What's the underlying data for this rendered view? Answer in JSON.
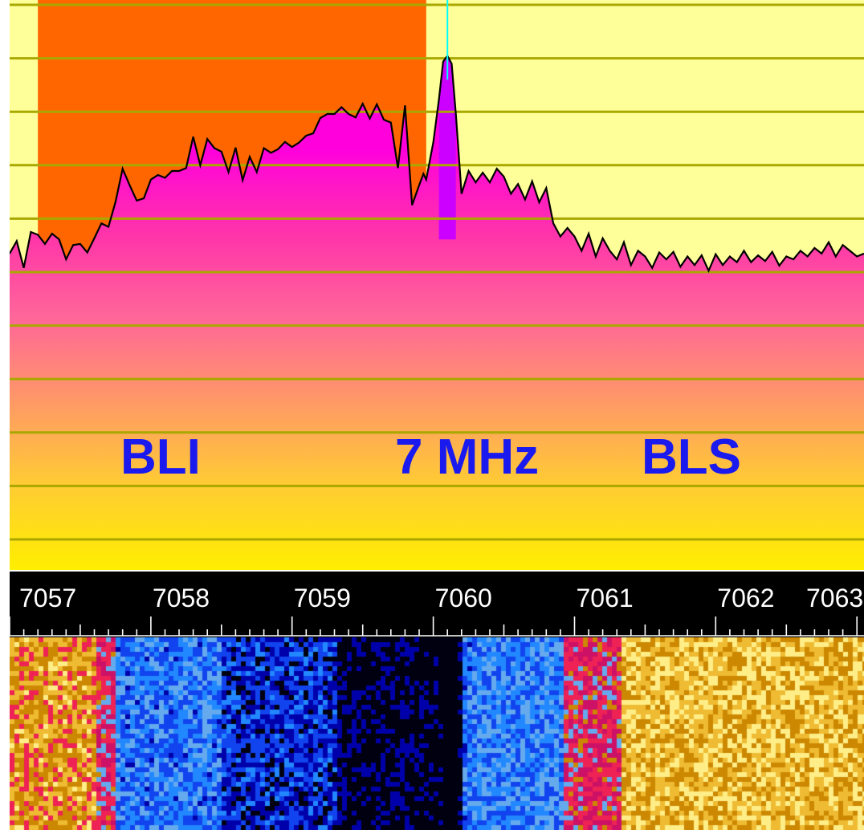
{
  "spectrum": {
    "band_labels": {
      "lower_edge": "BLI",
      "center": "7 MHz",
      "upper_edge": "BLS"
    },
    "passband": {
      "start_khz": 7057.2,
      "end_khz": 7059.95
    },
    "tuned_frequency_khz": 7060.1,
    "trace_points": [
      [
        7057.0,
        0.445
      ],
      [
        7057.05,
        0.423
      ],
      [
        7057.1,
        0.47
      ],
      [
        7057.15,
        0.407
      ],
      [
        7057.2,
        0.412
      ],
      [
        7057.25,
        0.428
      ],
      [
        7057.3,
        0.41
      ],
      [
        7057.35,
        0.42
      ],
      [
        7057.4,
        0.455
      ],
      [
        7057.45,
        0.43
      ],
      [
        7057.5,
        0.428
      ],
      [
        7057.55,
        0.443
      ],
      [
        7057.6,
        0.418
      ],
      [
        7057.65,
        0.392
      ],
      [
        7057.7,
        0.398
      ],
      [
        7057.75,
        0.354
      ],
      [
        7057.8,
        0.296
      ],
      [
        7057.85,
        0.325
      ],
      [
        7057.9,
        0.352
      ],
      [
        7057.95,
        0.348
      ],
      [
        7058.0,
        0.315
      ],
      [
        7058.05,
        0.307
      ],
      [
        7058.1,
        0.312
      ],
      [
        7058.15,
        0.3
      ],
      [
        7058.2,
        0.3
      ],
      [
        7058.25,
        0.295
      ],
      [
        7058.3,
        0.24
      ],
      [
        7058.35,
        0.29
      ],
      [
        7058.4,
        0.244
      ],
      [
        7058.45,
        0.26
      ],
      [
        7058.5,
        0.266
      ],
      [
        7058.55,
        0.302
      ],
      [
        7058.6,
        0.259
      ],
      [
        7058.65,
        0.316
      ],
      [
        7058.7,
        0.275
      ],
      [
        7058.75,
        0.302
      ],
      [
        7058.8,
        0.26
      ],
      [
        7058.85,
        0.268
      ],
      [
        7058.9,
        0.262
      ],
      [
        7058.95,
        0.249
      ],
      [
        7059.0,
        0.258
      ],
      [
        7059.05,
        0.25
      ],
      [
        7059.1,
        0.238
      ],
      [
        7059.15,
        0.234
      ],
      [
        7059.2,
        0.207
      ],
      [
        7059.25,
        0.2
      ],
      [
        7059.3,
        0.2
      ],
      [
        7059.35,
        0.188
      ],
      [
        7059.4,
        0.2
      ],
      [
        7059.45,
        0.206
      ],
      [
        7059.5,
        0.182
      ],
      [
        7059.55,
        0.208
      ],
      [
        7059.6,
        0.183
      ],
      [
        7059.65,
        0.21
      ],
      [
        7059.7,
        0.215
      ],
      [
        7059.75,
        0.295
      ],
      [
        7059.8,
        0.185
      ],
      [
        7059.85,
        0.36
      ],
      [
        7059.9,
        0.325
      ],
      [
        7059.93,
        0.305
      ],
      [
        7059.95,
        0.315
      ],
      [
        7060.0,
        0.25
      ],
      [
        7060.04,
        0.175
      ],
      [
        7060.07,
        0.108
      ],
      [
        7060.1,
        0.098
      ],
      [
        7060.13,
        0.112
      ],
      [
        7060.16,
        0.2
      ],
      [
        7060.2,
        0.34
      ],
      [
        7060.25,
        0.3
      ],
      [
        7060.3,
        0.32
      ],
      [
        7060.35,
        0.303
      ],
      [
        7060.4,
        0.32
      ],
      [
        7060.45,
        0.296
      ],
      [
        7060.5,
        0.31
      ],
      [
        7060.55,
        0.34
      ],
      [
        7060.6,
        0.323
      ],
      [
        7060.65,
        0.35
      ],
      [
        7060.7,
        0.318
      ],
      [
        7060.75,
        0.355
      ],
      [
        7060.8,
        0.33
      ],
      [
        7060.85,
        0.392
      ],
      [
        7060.9,
        0.415
      ],
      [
        7060.95,
        0.4
      ],
      [
        7061.0,
        0.415
      ],
      [
        7061.05,
        0.44
      ],
      [
        7061.1,
        0.41
      ],
      [
        7061.15,
        0.45
      ],
      [
        7061.2,
        0.418
      ],
      [
        7061.25,
        0.44
      ],
      [
        7061.3,
        0.455
      ],
      [
        7061.35,
        0.425
      ],
      [
        7061.4,
        0.465
      ],
      [
        7061.45,
        0.44
      ],
      [
        7061.5,
        0.45
      ],
      [
        7061.55,
        0.47
      ],
      [
        7061.6,
        0.443
      ],
      [
        7061.65,
        0.455
      ],
      [
        7061.7,
        0.442
      ],
      [
        7061.75,
        0.468
      ],
      [
        7061.8,
        0.45
      ],
      [
        7061.85,
        0.465
      ],
      [
        7061.9,
        0.448
      ],
      [
        7061.95,
        0.475
      ],
      [
        7062.0,
        0.446
      ],
      [
        7062.05,
        0.465
      ],
      [
        7062.1,
        0.45
      ],
      [
        7062.15,
        0.46
      ],
      [
        7062.2,
        0.44
      ],
      [
        7062.25,
        0.46
      ],
      [
        7062.3,
        0.448
      ],
      [
        7062.35,
        0.458
      ],
      [
        7062.4,
        0.442
      ],
      [
        7062.45,
        0.466
      ],
      [
        7062.5,
        0.45
      ],
      [
        7062.55,
        0.455
      ],
      [
        7062.6,
        0.44
      ],
      [
        7062.65,
        0.45
      ],
      [
        7062.7,
        0.435
      ],
      [
        7062.75,
        0.445
      ],
      [
        7062.8,
        0.425
      ],
      [
        7062.85,
        0.45
      ],
      [
        7062.9,
        0.43
      ],
      [
        7062.95,
        0.44
      ],
      [
        7063.0,
        0.45
      ],
      [
        7063.05,
        0.445
      ]
    ],
    "colors": {
      "panel_background": "#ffff99",
      "passband_fill": "#ff6600",
      "grid_line": "#a8a800",
      "tuning_marker": "#00ffff",
      "trace_outline": "#000000",
      "peak_fill": "#cc00ff",
      "band_label_text": "#1a1aee",
      "fill_gradient": [
        "#ff00dd",
        "#ff33aa",
        "#ff6699",
        "#ff9966",
        "#ffcc33",
        "#ffee00"
      ]
    }
  },
  "scale": {
    "ticks": [
      "7057",
      "7058",
      "7059",
      "7060",
      "7061",
      "7062",
      "7063"
    ],
    "colors": {
      "background": "#000000",
      "text": "#ffffff"
    }
  },
  "waterfall": {
    "color_map": [
      "#000010",
      "#0000aa",
      "#1144ee",
      "#2288ff",
      "#66aaee",
      "#cc1166",
      "#ee2255",
      "#cc8800",
      "#eebb33",
      "#ffee88"
    ]
  }
}
